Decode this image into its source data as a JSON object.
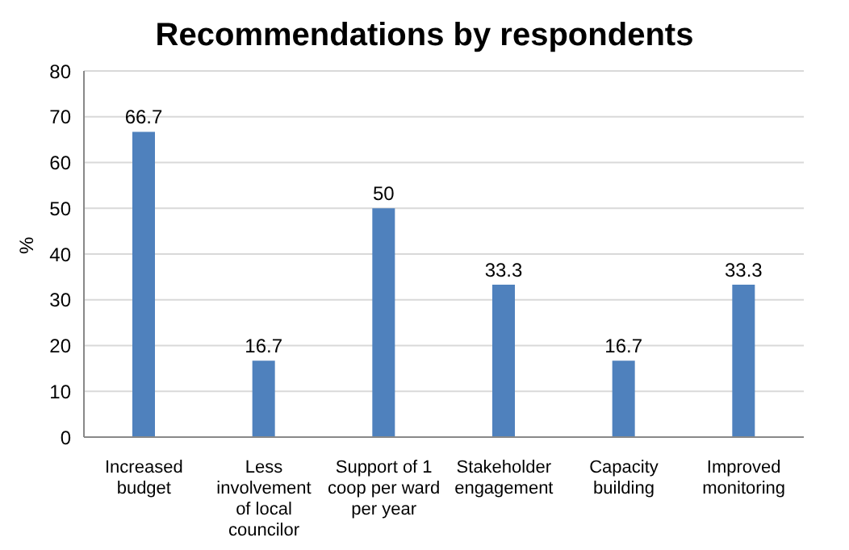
{
  "chart_data": {
    "type": "bar",
    "title": "Recommendations by respondents",
    "ylabel": "%",
    "categories": [
      "Increased budget",
      "Less involvement of local councilor",
      "Support of 1 coop per ward per year",
      "Stakeholder engagement",
      "Capacity building",
      "Improved monitoring"
    ],
    "values": [
      66.7,
      16.7,
      50,
      33.3,
      16.7,
      33.3
    ],
    "color": "#4f81bd",
    "ylim": [
      0,
      80
    ],
    "yticks": [
      0,
      10,
      20,
      30,
      40,
      50,
      60,
      70,
      80
    ],
    "grid": "y",
    "data_labels": true
  }
}
